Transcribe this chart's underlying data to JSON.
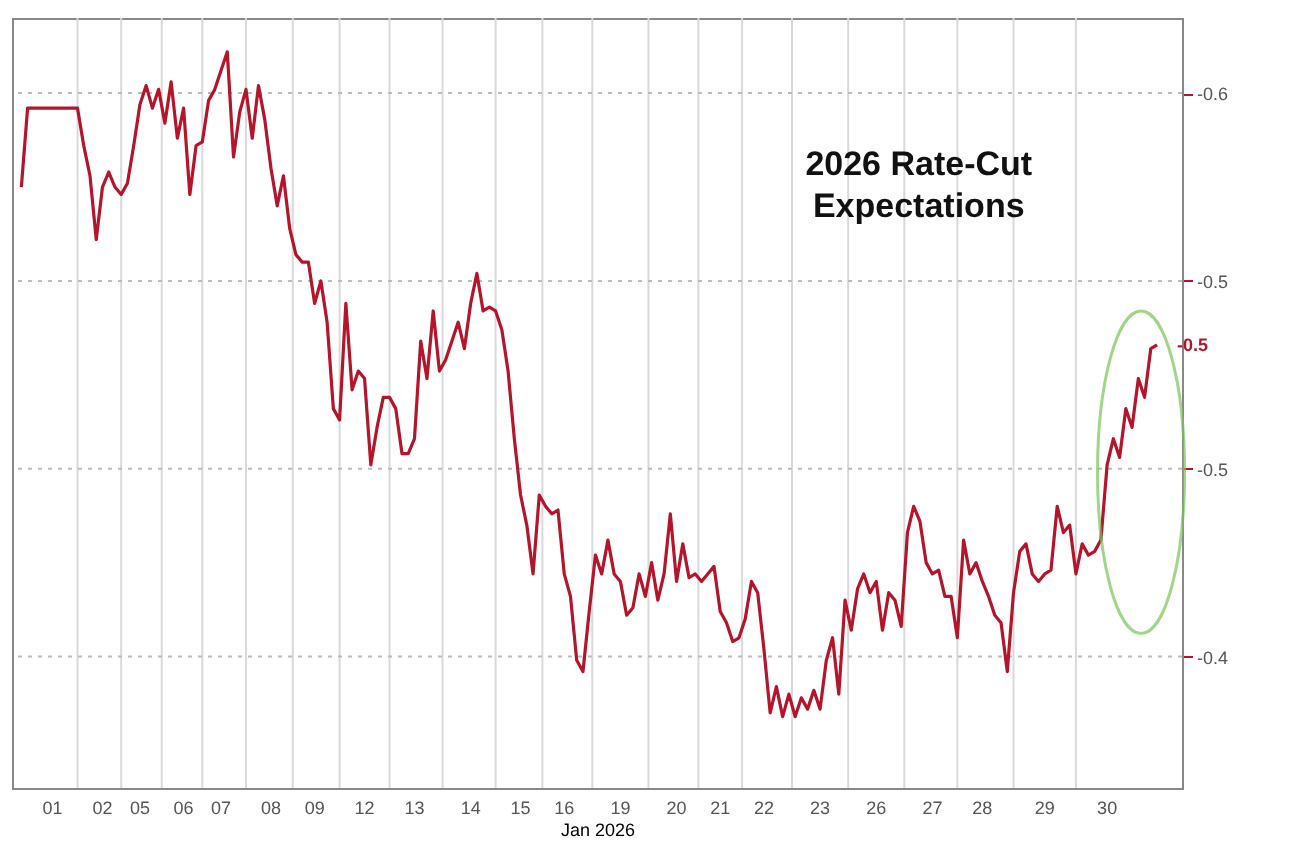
{
  "chart_data": {
    "type": "line",
    "title": "2026 Rate-Cut Expectations",
    "xlabel": "Jan 2026",
    "categories": [
      null,
      null,
      null,
      null,
      null,
      "01",
      null,
      null,
      null,
      null,
      null,
      null,
      null,
      "02",
      null,
      null,
      null,
      null,
      null,
      "05",
      null,
      null,
      null,
      null,
      null,
      null,
      "06",
      null,
      null,
      null,
      null,
      null,
      "07",
      null,
      null,
      null,
      null,
      null,
      null,
      null,
      "08",
      null,
      null,
      null,
      null,
      null,
      null,
      "09",
      null,
      null,
      null,
      null,
      null,
      null,
      null,
      "12",
      null,
      null,
      null,
      null,
      null,
      null,
      null,
      "13",
      null,
      null,
      null,
      null,
      null,
      null,
      null,
      null,
      "14",
      null,
      null,
      null,
      null,
      null,
      null,
      null,
      "15",
      null,
      null,
      null,
      null,
      null,
      null,
      "16",
      null,
      null,
      null,
      null,
      null,
      null,
      null,
      null,
      "19",
      null,
      null,
      null,
      null,
      null,
      null,
      null,
      null,
      "20",
      null,
      null,
      null,
      null,
      null,
      null,
      "21",
      null,
      null,
      null,
      null,
      null,
      null,
      "22",
      null,
      null,
      null,
      null,
      null,
      null,
      null,
      null,
      "23",
      null,
      null,
      null,
      null,
      null,
      null,
      null,
      null,
      "26",
      null,
      null,
      null,
      null,
      null,
      null,
      null,
      null,
      "27",
      null,
      null,
      null,
      null,
      null,
      null,
      null,
      "28",
      null,
      null,
      null,
      null,
      null,
      null,
      null,
      null,
      null,
      "29",
      null,
      null,
      null,
      null,
      null,
      null,
      null,
      null,
      null,
      "30",
      null,
      null,
      null,
      null,
      null,
      null,
      null,
      null
    ],
    "ylim": [
      -0.415,
      -0.62
    ],
    "yticks": [
      {
        "value": -0.6,
        "label": "-0.6"
      },
      {
        "value": -0.55,
        "label": "-0.5"
      },
      {
        "value": -0.5,
        "label": "-0.5"
      },
      {
        "value": -0.45,
        "label": "-0.4"
      }
    ],
    "grid": true,
    "line_style": "solid",
    "annotations": [
      "-0.5"
    ],
    "series": [
      {
        "color": "#b5152b",
        "values": [
          -0.575,
          -0.596,
          -0.596,
          -0.596,
          -0.596,
          -0.596,
          -0.596,
          -0.596,
          -0.596,
          -0.596,
          -0.586,
          -0.578,
          -0.561,
          -0.575,
          -0.579,
          -0.575,
          -0.573,
          -0.576,
          -0.586,
          -0.597,
          -0.602,
          -0.596,
          -0.601,
          -0.592,
          -0.603,
          -0.588,
          -0.596,
          -0.573,
          -0.586,
          -0.587,
          -0.598,
          -0.601,
          -0.606,
          -0.611,
          -0.583,
          -0.595,
          -0.601,
          -0.588,
          -0.602,
          -0.593,
          -0.58,
          -0.57,
          -0.578,
          -0.564,
          -0.557,
          -0.555,
          -0.555,
          -0.544,
          -0.55,
          -0.539,
          -0.516,
          -0.513,
          -0.544,
          -0.521,
          -0.526,
          -0.524,
          -0.501,
          -0.511,
          -0.519,
          -0.519,
          -0.516,
          -0.504,
          -0.504,
          -0.508,
          -0.534,
          -0.524,
          -0.542,
          -0.526,
          -0.529,
          -0.534,
          -0.539,
          -0.532,
          -0.544,
          -0.552,
          -0.542,
          -0.543,
          -0.542,
          -0.537,
          -0.526,
          -0.508,
          -0.493,
          -0.485,
          -0.472,
          -0.493,
          -0.49,
          -0.488,
          -0.489,
          -0.472,
          -0.466,
          -0.449,
          -0.446,
          -0.462,
          -0.477,
          -0.472,
          -0.481,
          -0.472,
          -0.47,
          -0.461,
          -0.463,
          -0.472,
          -0.466,
          -0.475,
          -0.465,
          -0.472,
          -0.488,
          -0.47,
          -0.48,
          -0.471,
          -0.472,
          -0.47,
          -0.472,
          -0.474,
          -0.462,
          -0.459,
          -0.454,
          -0.455,
          -0.46,
          -0.47,
          -0.467,
          -0.452,
          -0.435,
          -0.442,
          -0.434,
          -0.44,
          -0.434,
          -0.439,
          -0.436,
          -0.441,
          -0.436,
          -0.449,
          -0.455,
          -0.44,
          -0.465,
          -0.457,
          -0.468,
          -0.472,
          -0.467,
          -0.47,
          -0.457,
          -0.467,
          -0.465,
          -0.458,
          -0.483,
          -0.49,
          -0.486,
          -0.475,
          -0.472,
          -0.473,
          -0.466,
          -0.466,
          -0.455,
          -0.481,
          -0.472,
          -0.475,
          -0.47,
          -0.466,
          -0.461,
          -0.459,
          -0.446,
          -0.467,
          -0.478,
          -0.48,
          -0.472,
          -0.47,
          -0.472,
          -0.473,
          -0.49,
          -0.483,
          -0.485,
          -0.472,
          -0.48,
          -0.477,
          -0.478,
          -0.481,
          -0.501,
          -0.508,
          -0.503,
          -0.516,
          -0.511,
          -0.524,
          -0.519,
          -0.532,
          -0.533
        ]
      }
    ]
  }
}
